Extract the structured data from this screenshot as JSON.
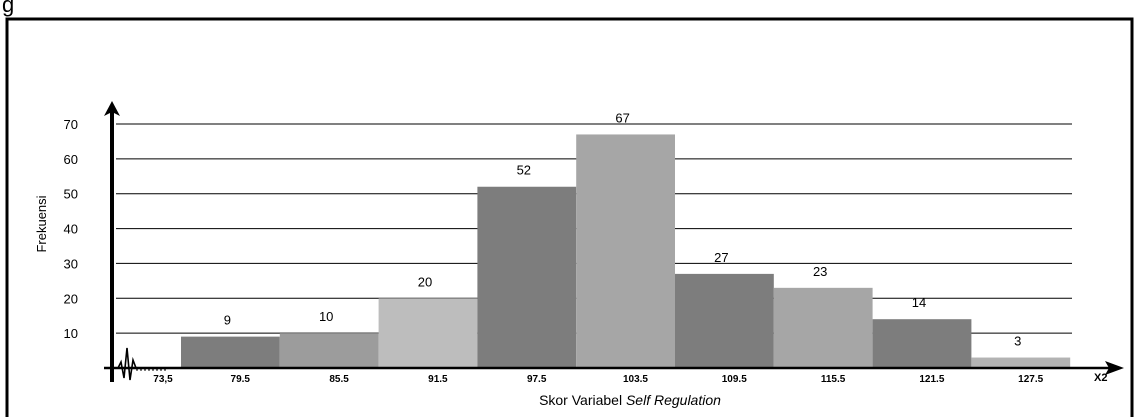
{
  "chart_data": {
    "type": "bar",
    "categories": [
      "79.5",
      "85.5",
      "91.5",
      "97.5",
      "103.5",
      "109.5",
      "115.5",
      "121.5",
      "127.5"
    ],
    "x_tick_labels": [
      "73,5",
      "79.5",
      "85.5",
      "91.5",
      "97.5",
      "103.5",
      "109.5",
      "115.5",
      "121.5",
      "127.5"
    ],
    "values": [
      9,
      10,
      20,
      52,
      67,
      27,
      23,
      14,
      3
    ],
    "data_labels": [
      "9",
      "10",
      "20",
      "52",
      "67",
      "27",
      "23",
      "14",
      "3"
    ],
    "y_ticks": [
      "10",
      "20",
      "30",
      "40",
      "50",
      "60",
      "70"
    ],
    "ylim": [
      0,
      70
    ],
    "ylabel": "Frekuensi",
    "xlabel_prefix": "Skor Variabel ",
    "xlabel_italic": "Self Regulation",
    "x_axis_end_label": "X2",
    "grid": true,
    "bar_colors": [
      "#7d7d7d",
      "#9c9c9c",
      "#bdbdbd",
      "#7d7d7d",
      "#a6a6a6",
      "#7d7d7d",
      "#a6a6a6",
      "#7d7d7d",
      "#b3b3b3"
    ]
  },
  "header_text": "g"
}
